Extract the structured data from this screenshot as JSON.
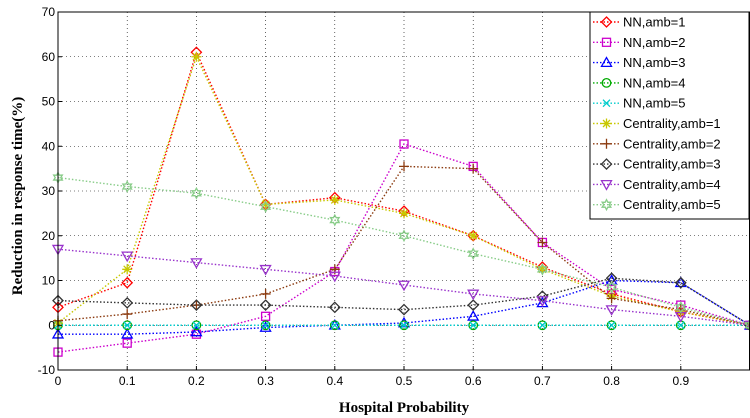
{
  "chart_data": {
    "type": "line",
    "title": "",
    "xlabel": "Hospital Probability",
    "ylabel": "Reduction in response time(%)",
    "x": [
      0,
      0.1,
      0.2,
      0.3,
      0.4,
      0.5,
      0.6,
      0.7,
      0.8,
      0.9,
      1.0
    ],
    "x_ticks": [
      "0",
      "0.1",
      "0.2",
      "0.3",
      "0.4",
      "0.5",
      "0.6",
      "0.7",
      "0.8",
      "0.9"
    ],
    "xlim": [
      0,
      1.0
    ],
    "ylim": [
      -10,
      70
    ],
    "y_ticks": [
      "-10",
      "0",
      "10",
      "20",
      "30",
      "40",
      "50",
      "60",
      "70"
    ],
    "grid": true,
    "legend_position": "top-right",
    "series": [
      {
        "name": "NN,amb=1",
        "color": "#ff0000",
        "marker": "diamond",
        "values": [
          4,
          9.5,
          61,
          27,
          28.5,
          25.5,
          20,
          13,
          7,
          3,
          0
        ]
      },
      {
        "name": "NN,amb=2",
        "color": "#cc00cc",
        "marker": "square",
        "values": [
          -6,
          -4,
          -2,
          2,
          12,
          40.5,
          35.5,
          18.5,
          8,
          4.5,
          0
        ]
      },
      {
        "name": "NN,amb=3",
        "color": "#0000ff",
        "marker": "triangle-up",
        "values": [
          -2,
          -2,
          -1.5,
          -0.5,
          0,
          0.5,
          2,
          5,
          10,
          9.5,
          0
        ]
      },
      {
        "name": "NN,amb=4",
        "color": "#00aa00",
        "marker": "circle",
        "values": [
          0,
          0,
          0,
          0,
          0,
          0,
          0,
          0,
          0,
          0,
          0
        ]
      },
      {
        "name": "NN,amb=5",
        "color": "#00cccc",
        "marker": "x",
        "values": [
          0,
          0,
          0,
          0,
          0,
          0,
          0,
          0,
          0,
          0,
          0
        ]
      },
      {
        "name": "Centrality,amb=1",
        "color": "#c8c800",
        "marker": "asterisk",
        "values": [
          0.5,
          12.5,
          60,
          27,
          28,
          25,
          20,
          12.5,
          6.5,
          3,
          0
        ]
      },
      {
        "name": "Centrality,amb=2",
        "color": "#8b3a0f",
        "marker": "plus",
        "values": [
          1,
          2.5,
          4.5,
          7,
          12.5,
          35.5,
          35,
          18.5,
          6,
          3.5,
          0
        ]
      },
      {
        "name": "Centrality,amb=3",
        "color": "#333333",
        "marker": "diamond",
        "values": [
          5.5,
          5,
          4.5,
          4.5,
          4,
          3.5,
          4.5,
          6.5,
          10.5,
          9.5,
          0
        ]
      },
      {
        "name": "Centrality,amb=4",
        "color": "#9933cc",
        "marker": "triangle-down",
        "values": [
          17,
          15.5,
          14,
          12.5,
          11,
          9,
          7,
          5.5,
          3.5,
          2,
          0
        ]
      },
      {
        "name": "Centrality,amb=5",
        "color": "#88cc88",
        "marker": "hexagram",
        "values": [
          33,
          31,
          29.5,
          26.5,
          23.5,
          20,
          16,
          12.5,
          8.5,
          4,
          0
        ]
      }
    ]
  }
}
